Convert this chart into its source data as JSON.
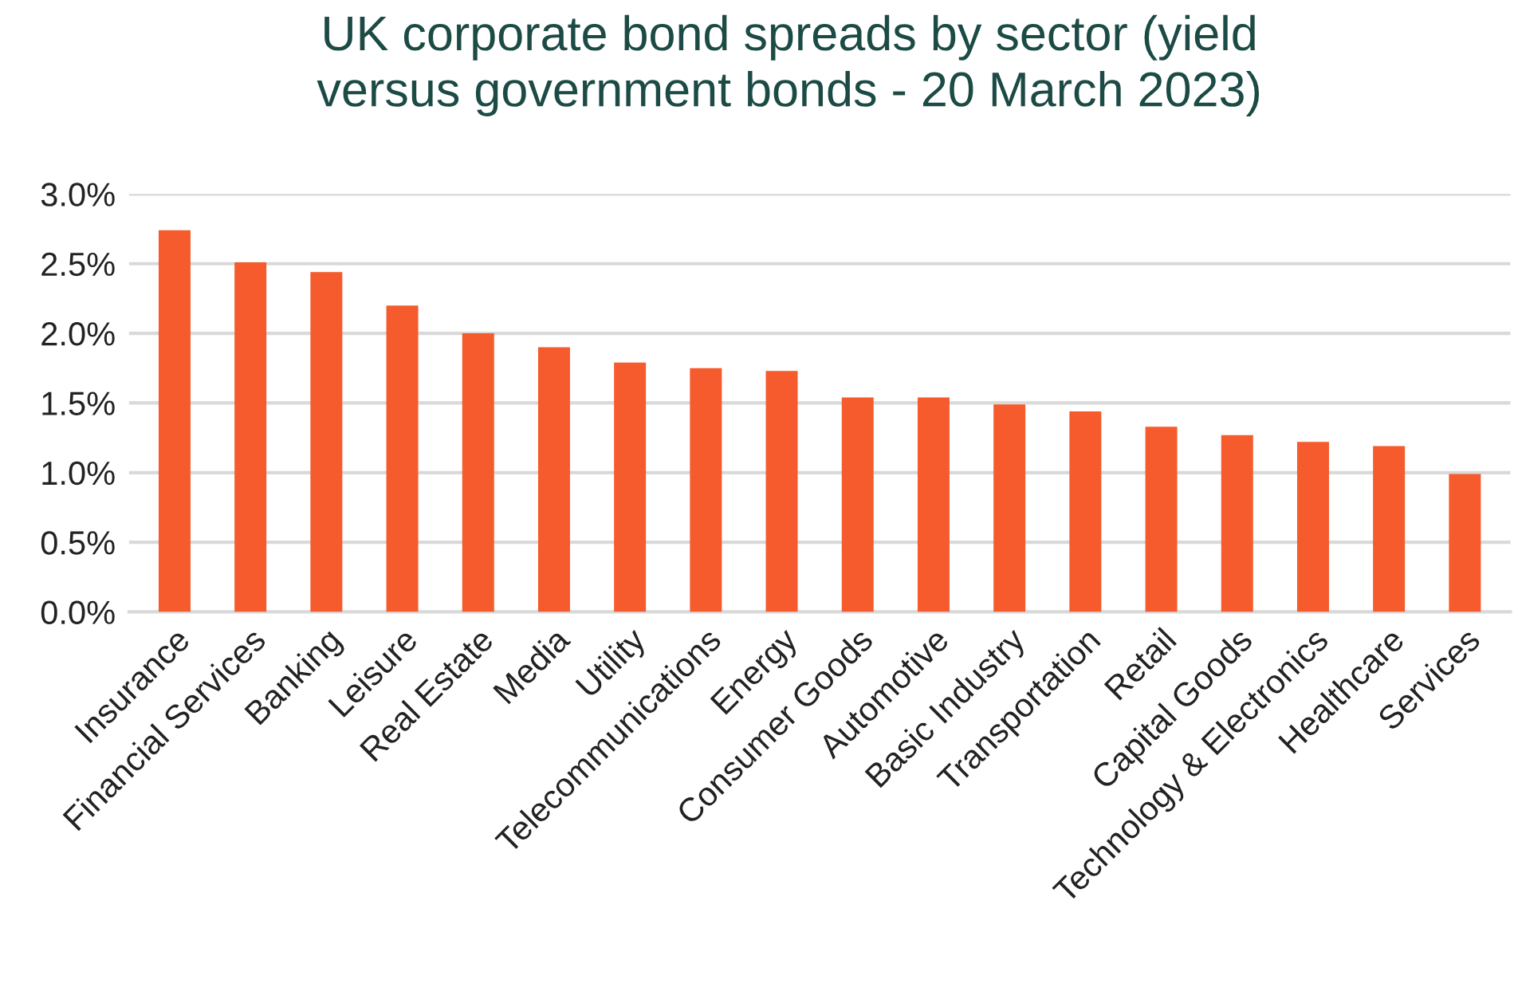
{
  "chart_data": {
    "type": "bar",
    "title": "UK corporate bond spreads by sector (yield\nversus government bonds - 20 March 2023)",
    "categories": [
      "Insurance",
      "Financial Services",
      "Banking",
      "Leisure",
      "Real Estate",
      "Media",
      "Utility",
      "Telecommunications",
      "Energy",
      "Consumer Goods",
      "Automotive",
      "Basic Industry",
      "Transportation",
      "Retail",
      "Capital Goods",
      "Technology & Electronics",
      "Healthcare",
      "Services"
    ],
    "values": [
      2.74,
      2.51,
      2.44,
      2.2,
      2.0,
      1.9,
      1.79,
      1.75,
      1.73,
      1.54,
      1.54,
      1.49,
      1.44,
      1.33,
      1.27,
      1.22,
      1.19,
      0.99
    ],
    "color": "#f55b2d",
    "ylim": [
      0,
      3
    ],
    "yticks": [
      {
        "value": 0,
        "label": "0.0%"
      },
      {
        "value": 0.5,
        "label": "0.5%"
      },
      {
        "value": 1,
        "label": "1.0%"
      },
      {
        "value": 1.5,
        "label": "1.5%"
      },
      {
        "value": 2,
        "label": "2.0%"
      },
      {
        "value": 2.5,
        "label": "2.5%"
      },
      {
        "value": 3,
        "label": "3.0%"
      }
    ],
    "grid": "y",
    "legend": false
  }
}
